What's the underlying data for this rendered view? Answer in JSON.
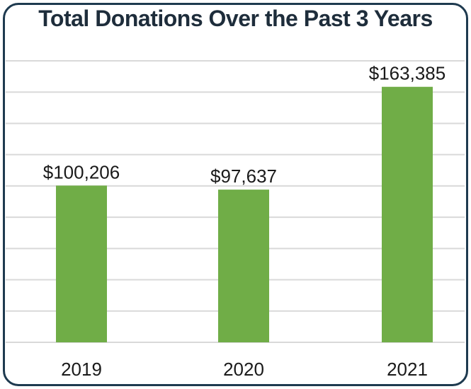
{
  "chart_data": {
    "type": "bar",
    "title": "Total Donations Over the Past 3 Years",
    "categories": [
      "2019",
      "2020",
      "2021"
    ],
    "values": [
      100206,
      97637,
      163385
    ],
    "data_labels": [
      "$100,206",
      "$97,637",
      "$163,385"
    ],
    "xlabel": "",
    "ylabel": "",
    "ylim": [
      0,
      180000
    ],
    "grid": true,
    "bar_color": "#70ad47",
    "grid_color": "#d9d9d9"
  }
}
